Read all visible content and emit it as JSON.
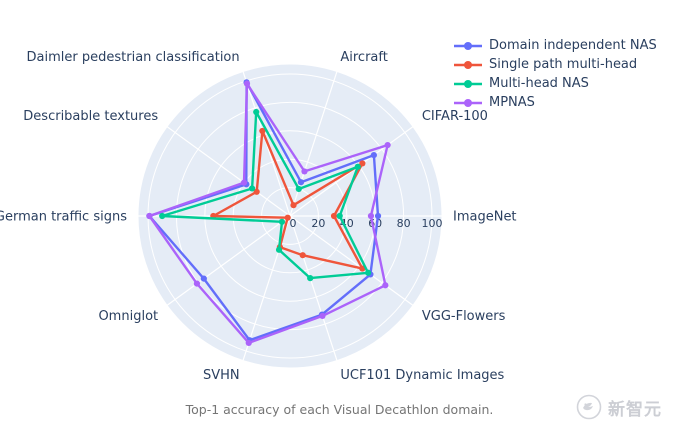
{
  "caption": "Top-1 accuracy of each Visual Decathlon domain.",
  "watermark": {
    "text": "新智元",
    "logo": "bird-in-circle"
  },
  "legend": {
    "position": "top-right",
    "items": [
      {
        "label": "Domain independent NAS",
        "color": "#636EFA"
      },
      {
        "label": "Single path multi-head",
        "color": "#EF553B"
      },
      {
        "label": "Multi-head NAS",
        "color": "#00CC96"
      },
      {
        "label": "MPNAS",
        "color": "#AB63FA"
      }
    ]
  },
  "chart_data": {
    "type": "radar",
    "title": "Top-1 accuracy of each Visual Decathlon domain.",
    "categories": [
      "ImageNet",
      "CIFAR-100",
      "Aircraft",
      "Daimler pedestrian classification",
      "Describable textures",
      "German traffic signs",
      "Omniglot",
      "SVHN",
      "UCF101 Dynamic Images",
      "VGG-Flowers"
    ],
    "angular_layout": "ImageNet at 0 degrees, categories counterclockwise every 36 degrees",
    "series": [
      {
        "name": "Domain independent NAS",
        "color": "#636EFA",
        "values": [
          62,
          73,
          25,
          99,
          38,
          99,
          75,
          92,
          73,
          70
        ]
      },
      {
        "name": "Single path multi-head",
        "color": "#EF553B",
        "values": [
          31,
          63,
          8,
          63,
          29,
          54,
          2,
          23,
          29,
          63
        ]
      },
      {
        "name": "Multi-head NAS",
        "color": "#00CC96",
        "values": [
          35,
          59,
          20,
          77,
          33,
          90,
          7,
          25,
          46,
          68
        ]
      },
      {
        "name": "MPNAS",
        "color": "#AB63FA",
        "values": [
          57,
          85,
          33,
          98,
          40,
          99,
          81,
          94,
          74,
          83
        ]
      }
    ],
    "radial_ticks": [
      0,
      20,
      40,
      60,
      80,
      100
    ],
    "radial_range": [
      0,
      100
    ],
    "grid": true,
    "legend_position": "top-right",
    "colors": {
      "plot_background": "#E5ECF6",
      "grid_line": "#ffffff",
      "label_text": "#2a3f5f"
    }
  }
}
